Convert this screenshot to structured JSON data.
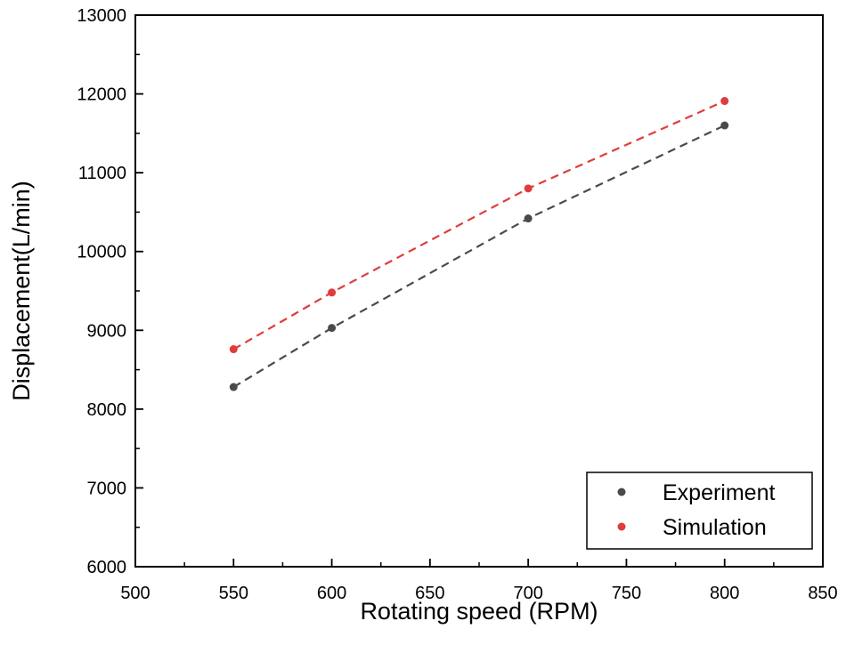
{
  "chart_data": {
    "type": "scatter",
    "xlabel": "Rotating speed (RPM)",
    "ylabel": "Displacement(L/min)",
    "xlim": [
      500,
      850
    ],
    "ylim": [
      6000,
      13000
    ],
    "xticks": [
      500,
      550,
      600,
      650,
      700,
      750,
      800,
      850
    ],
    "yticks": [
      6000,
      7000,
      8000,
      9000,
      10000,
      11000,
      12000,
      13000
    ],
    "grid": false,
    "legend_position": "bottom-right",
    "series": [
      {
        "name": "Experiment",
        "color": "#4a4a4a",
        "marker": "circle",
        "line": "dashed",
        "points": [
          {
            "x": 550,
            "y": 8280
          },
          {
            "x": 600,
            "y": 9030
          },
          {
            "x": 700,
            "y": 10420
          },
          {
            "x": 800,
            "y": 11600
          }
        ]
      },
      {
        "name": "Simulation",
        "color": "#e03c3c",
        "marker": "circle",
        "line": "dashed",
        "points": [
          {
            "x": 550,
            "y": 8760
          },
          {
            "x": 600,
            "y": 9480
          },
          {
            "x": 700,
            "y": 10800
          },
          {
            "x": 800,
            "y": 11910
          }
        ]
      }
    ]
  }
}
